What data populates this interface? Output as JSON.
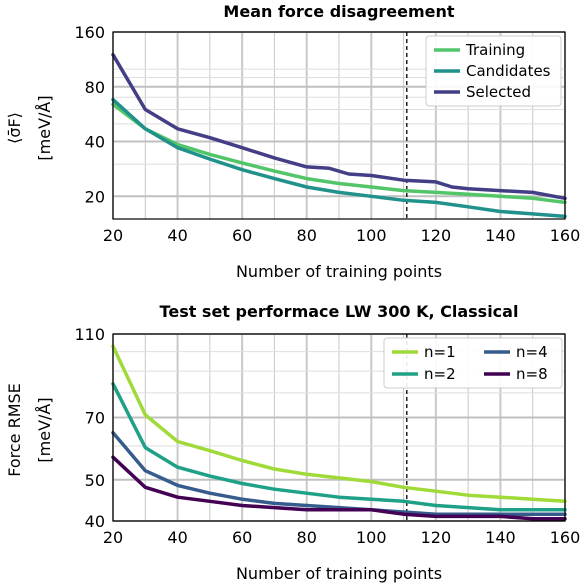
{
  "chart_data": [
    {
      "type": "line",
      "title": "Mean force disagreement",
      "xlabel": "Number of training points",
      "ylabel_line1": "⟨σ̄F⟩",
      "ylabel_line2": "[meV/Å]",
      "y_scale": "log",
      "xlim": [
        20,
        160
      ],
      "ylim": [
        15,
        160
      ],
      "xticks": [
        20,
        40,
        60,
        80,
        100,
        120,
        140,
        160
      ],
      "yticks": [
        20,
        40,
        80,
        160
      ],
      "vline_x": 111,
      "grid": true,
      "legend_position": "top-right",
      "series": [
        {
          "name": "Training",
          "color": "#52c569",
          "x": [
            20,
            30,
            40,
            50,
            60,
            70,
            80,
            90,
            100,
            110,
            120,
            130,
            140,
            150,
            160
          ],
          "y": [
            64,
            47,
            38.5,
            34,
            30.5,
            27.5,
            25,
            23.5,
            22.5,
            21.5,
            21,
            20.5,
            20,
            19.5,
            18.5
          ]
        },
        {
          "name": "Candidates",
          "color": "#21918c",
          "x": [
            20,
            30,
            40,
            50,
            60,
            70,
            80,
            90,
            100,
            110,
            120,
            130,
            140,
            150,
            160
          ],
          "y": [
            68,
            47,
            37,
            32,
            28,
            25,
            22.5,
            21,
            20,
            19,
            18.5,
            17.5,
            16.5,
            16,
            15.5
          ]
        },
        {
          "name": "Selected",
          "color": "#433e85",
          "x": [
            20,
            30,
            40,
            50,
            60,
            70,
            80,
            87,
            93,
            100,
            110,
            120,
            125,
            130,
            140,
            150,
            160
          ],
          "y": [
            120,
            60,
            47,
            42,
            37,
            32.5,
            29,
            28.5,
            26.5,
            26,
            24.5,
            24,
            22.5,
            22,
            21.5,
            21,
            19.5
          ]
        }
      ]
    },
    {
      "type": "line",
      "title": "Test set performace LW 300 K, Classical",
      "xlabel": "Number of training points",
      "ylabel_line1": "Force RMSE",
      "ylabel_line2": "[meV/Å]",
      "y_scale": "log",
      "xlim": [
        20,
        160
      ],
      "ylim": [
        40,
        110
      ],
      "xticks": [
        20,
        40,
        60,
        80,
        100,
        120,
        140,
        160
      ],
      "yticks": [
        40,
        50,
        70,
        110
      ],
      "vline_x": 111,
      "grid": true,
      "legend_position": "top-right",
      "legend_columns": 2,
      "series": [
        {
          "name": "n=1",
          "color": "#a0da39",
          "x": [
            20,
            30,
            40,
            50,
            60,
            70,
            80,
            90,
            100,
            110,
            120,
            130,
            140,
            150,
            160
          ],
          "y": [
            103,
            71,
            61.5,
            58.5,
            55.5,
            53,
            51.5,
            50.5,
            49.5,
            48,
            47,
            46,
            45.5,
            45,
            44.5
          ]
        },
        {
          "name": "n=2",
          "color": "#1fa187",
          "x": [
            20,
            30,
            40,
            50,
            60,
            70,
            80,
            90,
            100,
            110,
            120,
            130,
            140,
            150,
            160
          ],
          "y": [
            84,
            59.5,
            53.5,
            51,
            49,
            47.5,
            46.5,
            45.5,
            45,
            44.5,
            43.5,
            43,
            42.5,
            42.5,
            42.5
          ]
        },
        {
          "name": "n=4",
          "color": "#365c8d",
          "x": [
            20,
            30,
            40,
            50,
            60,
            70,
            80,
            90,
            100,
            110,
            120,
            130,
            140,
            150,
            160
          ],
          "y": [
            64.5,
            52.5,
            48.5,
            46.5,
            45,
            44,
            43.5,
            43,
            42.5,
            42,
            41.5,
            41.5,
            41.5,
            41.5,
            41.5
          ]
        },
        {
          "name": "n=8",
          "color": "#440154",
          "x": [
            20,
            30,
            40,
            50,
            60,
            70,
            80,
            90,
            100,
            110,
            120,
            130,
            140,
            150,
            160
          ],
          "y": [
            56.5,
            48,
            45.5,
            44.5,
            43.5,
            43,
            42.5,
            42.5,
            42.5,
            41.5,
            41,
            41,
            41,
            40.5,
            40.5
          ]
        }
      ]
    }
  ]
}
